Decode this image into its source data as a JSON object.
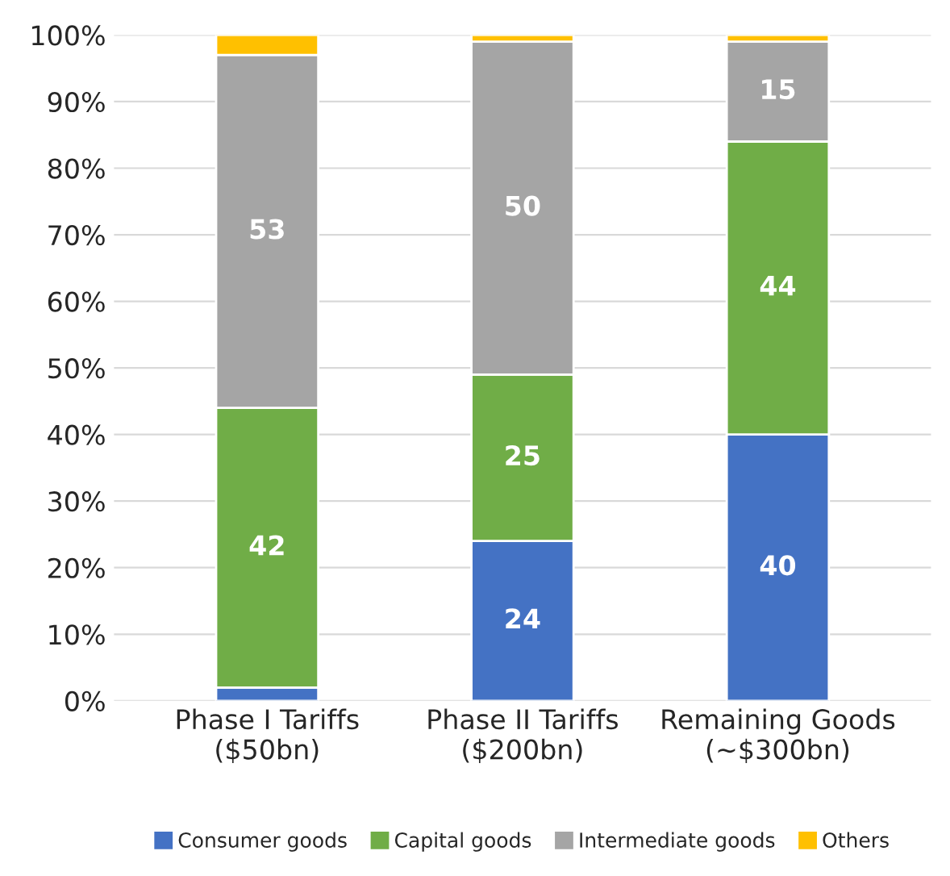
{
  "chart_data": {
    "type": "bar",
    "stacked": true,
    "categories": [
      "Phase I Tariffs\n($50bn)",
      "Phase II Tariffs\n($200bn)",
      "Remaining Goods\n(~$300bn)"
    ],
    "series": [
      {
        "name": "Consumer goods",
        "color": "#4472c4",
        "values": [
          2,
          24,
          40
        ],
        "value_labels": [
          null,
          "24",
          "40"
        ]
      },
      {
        "name": "Capital goods",
        "color": "#70ad47",
        "values": [
          42,
          25,
          44
        ],
        "value_labels": [
          "42",
          "25",
          "44"
        ]
      },
      {
        "name": "Intermediate goods",
        "color": "#a5a5a5",
        "values": [
          53,
          50,
          15
        ],
        "value_labels": [
          "53",
          "50",
          "15"
        ]
      },
      {
        "name": "Others",
        "color": "#ffc000",
        "values": [
          3,
          1,
          1
        ],
        "value_labels": [
          null,
          null,
          null
        ]
      }
    ],
    "ylim": [
      0,
      100
    ],
    "yticks": [
      {
        "value": 0,
        "label": "0%"
      },
      {
        "value": 10,
        "label": "10%"
      },
      {
        "value": 20,
        "label": "20%"
      },
      {
        "value": 30,
        "label": "30%"
      },
      {
        "value": 40,
        "label": "40%"
      },
      {
        "value": 50,
        "label": "50%"
      },
      {
        "value": 60,
        "label": "60%"
      },
      {
        "value": 70,
        "label": "70%"
      },
      {
        "value": 80,
        "label": "80%"
      },
      {
        "value": 90,
        "label": "90%"
      },
      {
        "value": 100,
        "label": "100%"
      }
    ],
    "grid": "y",
    "legend": "bottom"
  }
}
